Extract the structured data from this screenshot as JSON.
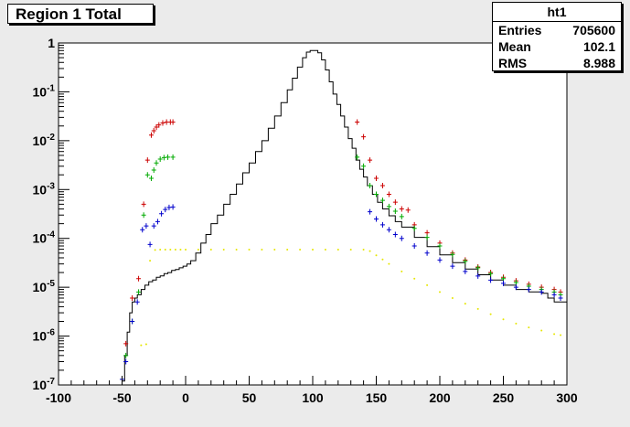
{
  "title": "Region 1 Total",
  "stats": {
    "name": "ht1",
    "rows": [
      {
        "label": "Entries",
        "value": "705600"
      },
      {
        "label": "Mean",
        "value": "102.1"
      },
      {
        "label": "RMS",
        "value": "8.988"
      }
    ]
  },
  "chart_data": {
    "type": "line",
    "title": "Region 1 Total",
    "xlim": [
      -100,
      300
    ],
    "ylim": [
      1e-07,
      1
    ],
    "ylog": true,
    "x_ticks": [
      -100,
      -50,
      0,
      50,
      100,
      150,
      200,
      250,
      300
    ],
    "x_tick_labels": [
      "-100",
      "-50",
      "0",
      "50",
      "100",
      "150",
      "200",
      "250",
      "300"
    ],
    "y_ticks": [
      1e-07,
      1e-06,
      1e-05,
      0.0001,
      0.001,
      0.01,
      0.1,
      1
    ],
    "y_tick_labels": [
      {
        "base": "10",
        "exp": "-7"
      },
      {
        "base": "10",
        "exp": "-6"
      },
      {
        "base": "10",
        "exp": "-5"
      },
      {
        "base": "10",
        "exp": "-4"
      },
      {
        "base": "10",
        "exp": "-3"
      },
      {
        "base": "10",
        "exp": "-2"
      },
      {
        "base": "10",
        "exp": "-1"
      },
      {
        "base": "1",
        "exp": ""
      }
    ],
    "grid": false,
    "series": [
      {
        "style": "histogram",
        "color": "#000000",
        "x": [
          -50,
          -48,
          -46,
          -44,
          -42,
          -40,
          -38,
          -35,
          -32,
          -29,
          -26,
          -23,
          -20,
          -17,
          -14,
          -11,
          -8,
          -5,
          -2,
          1,
          4,
          8,
          12,
          16,
          20,
          25,
          30,
          35,
          40,
          45,
          50,
          55,
          60,
          65,
          70,
          75,
          80,
          84,
          88,
          92,
          95,
          98,
          101,
          104,
          107,
          110,
          113,
          116,
          119,
          122,
          125,
          128,
          131,
          134,
          137,
          140,
          143,
          147,
          151,
          155,
          160,
          165,
          170,
          180,
          190,
          200,
          210,
          220,
          230,
          240,
          250,
          260,
          270,
          280,
          285,
          290,
          295,
          300
        ],
        "y": [
          1.2e-07,
          4e-07,
          1.2e-06,
          3e-06,
          5e-06,
          6e-06,
          7e-06,
          9e-06,
          1.1e-05,
          1.3e-05,
          1.4e-05,
          1.6e-05,
          1.7e-05,
          1.9e-05,
          2e-05,
          2.2e-05,
          2.3e-05,
          2.5e-05,
          2.7e-05,
          3e-05,
          3.5e-05,
          5e-05,
          8e-05,
          0.00012,
          0.0002,
          0.0003,
          0.0005,
          0.0008,
          0.0013,
          0.0022,
          0.0035,
          0.006,
          0.01,
          0.018,
          0.032,
          0.06,
          0.11,
          0.19,
          0.32,
          0.5,
          0.65,
          0.7,
          0.7,
          0.63,
          0.45,
          0.28,
          0.16,
          0.09,
          0.055,
          0.032,
          0.019,
          0.011,
          0.007,
          0.004,
          0.0026,
          0.0018,
          0.0012,
          0.0008,
          0.00055,
          0.0004,
          0.00029,
          0.00022,
          0.00017,
          0.000105,
          6.8e-05,
          4.6e-05,
          3.2e-05,
          2.35e-05,
          1.8e-05,
          1.4e-05,
          1.1e-05,
          9e-06,
          8e-06,
          7.5e-06,
          6e-06,
          5e-06,
          5e-06,
          5e-06
        ]
      },
      {
        "style": "points",
        "color": "#cc0000",
        "x": [
          -47,
          -42,
          -37,
          -33,
          -30,
          -27,
          -25,
          -23,
          -21,
          -18,
          -15,
          -12,
          -10,
          135,
          140,
          145,
          150,
          155,
          160,
          165,
          170,
          175,
          180,
          190,
          200,
          210,
          220,
          230,
          240,
          250,
          260,
          270,
          280,
          290,
          295
        ],
        "y": [
          7e-07,
          6e-06,
          1.5e-05,
          0.0005,
          0.004,
          0.013,
          0.016,
          0.019,
          0.021,
          0.023,
          0.024,
          0.024,
          0.024,
          0.024,
          0.012,
          0.004,
          0.0017,
          0.0012,
          0.0008,
          0.00055,
          0.0004,
          0.00038,
          0.00019,
          0.00013,
          8e-05,
          5e-05,
          3.6e-05,
          2.6e-05,
          2e-05,
          1.6e-05,
          1.35e-05,
          1.15e-05,
          1e-05,
          9e-06,
          8e-06
        ]
      },
      {
        "style": "points",
        "color": "#00aa00",
        "x": [
          -47,
          -42,
          -37,
          -33,
          -30,
          -27,
          -25,
          -23,
          -20,
          -17,
          -14,
          -10,
          135,
          140,
          145,
          150,
          155,
          160,
          165,
          170,
          180,
          190,
          200,
          210,
          220,
          230,
          240,
          250,
          260,
          270,
          280,
          290,
          295
        ],
        "y": [
          4e-07,
          2e-06,
          8e-06,
          0.0003,
          0.002,
          0.0017,
          0.0025,
          0.0035,
          0.0042,
          0.0045,
          0.0046,
          0.0046,
          0.0046,
          0.003,
          0.0012,
          0.0008,
          0.0006,
          0.00045,
          0.00036,
          0.00028,
          0.00016,
          0.000105,
          7e-05,
          4.7e-05,
          3.4e-05,
          2.5e-05,
          1.9e-05,
          1.5e-05,
          1.25e-05,
          1.05e-05,
          9e-06,
          8e-06,
          7e-06
        ]
      },
      {
        "style": "points",
        "color": "#0000cc",
        "x": [
          -50,
          -47,
          -42,
          -38,
          -34,
          -31,
          -28,
          -25,
          -22,
          -19,
          -16,
          -13,
          -10,
          145,
          150,
          155,
          160,
          165,
          170,
          180,
          190,
          200,
          210,
          220,
          230,
          240,
          250,
          260,
          270,
          280,
          290,
          295
        ],
        "y": [
          1.3e-07,
          3e-07,
          2e-06,
          5e-06,
          0.00015,
          0.00018,
          7.5e-05,
          0.00018,
          0.00022,
          0.00032,
          0.00039,
          0.00043,
          0.00044,
          0.00035,
          0.00025,
          0.00019,
          0.00015,
          0.00012,
          0.0001,
          7e-05,
          5e-05,
          3.6e-05,
          2.7e-05,
          2.1e-05,
          1.7e-05,
          1.4e-05,
          1.2e-05,
          1e-05,
          9e-06,
          8e-06,
          7e-06,
          6e-06
        ]
      },
      {
        "style": "dots",
        "color": "#e6e600",
        "x": [
          -35,
          -31,
          -28,
          -24,
          -20,
          -16,
          -12,
          -8,
          -4,
          0,
          10,
          20,
          30,
          40,
          50,
          60,
          70,
          80,
          90,
          100,
          110,
          120,
          130,
          140,
          145,
          150,
          155,
          160,
          170,
          180,
          190,
          200,
          210,
          220,
          230,
          240,
          250,
          260,
          270,
          280,
          290,
          295
        ],
        "y": [
          6.5e-07,
          6.8e-07,
          3.5e-05,
          5.8e-05,
          5.9e-05,
          5.9e-05,
          5.9e-05,
          5.9e-05,
          5.9e-05,
          5.9e-05,
          5.9e-05,
          5.9e-05,
          5.9e-05,
          5.9e-05,
          5.9e-05,
          5.9e-05,
          5.9e-05,
          5.9e-05,
          5.9e-05,
          5.9e-05,
          5.9e-05,
          5.9e-05,
          5.9e-05,
          5.9e-05,
          5.5e-05,
          4.5e-05,
          3.7e-05,
          3e-05,
          2.1e-05,
          1.5e-05,
          1.1e-05,
          8e-06,
          6e-06,
          4.6e-06,
          3.6e-06,
          2.8e-06,
          2.2e-06,
          1.8e-06,
          1.5e-06,
          1.3e-06,
          1.1e-06,
          1.05e-06
        ]
      }
    ]
  }
}
